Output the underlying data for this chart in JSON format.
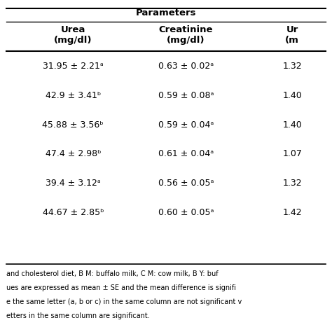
{
  "title": "Parameters",
  "col_headers": [
    "Urea\n(mg/dl)",
    "Creatinine\n(mg/dl)",
    "Ur\n(m"
  ],
  "rows": [
    [
      "31.95 ± 2.21ᵃ",
      "0.63 ± 0.02ᵃ",
      "1.32"
    ],
    [
      "42.9 ± 3.41ᵇ",
      "0.59 ± 0.08ᵃ",
      "1.40"
    ],
    [
      "45.88 ± 3.56ᵇ",
      "0.59 ± 0.04ᵃ",
      "1.40"
    ],
    [
      "47.4 ± 2.98ᵇ",
      "0.61 ± 0.04ᵃ",
      "1.07"
    ],
    [
      "39.4 ± 3.12ᵃ",
      "0.56 ± 0.05ᵃ",
      "1.32"
    ],
    [
      "44.67 ± 2.85ᵇ",
      "0.60 ± 0.05ᵃ",
      "1.42"
    ]
  ],
  "footnotes": [
    "and cholesterol diet, B M: buffalo milk, C M: cow milk, B Y: buf",
    "ues are expressed as mean ± SE and the mean difference is signifi",
    "e the same letter (a, b or c) in the same column are not significant v",
    "etters in the same column are significant."
  ],
  "bg_color": "#ffffff",
  "header_line_color": "#000000",
  "font_size": 9,
  "header_font_size": 9.5
}
